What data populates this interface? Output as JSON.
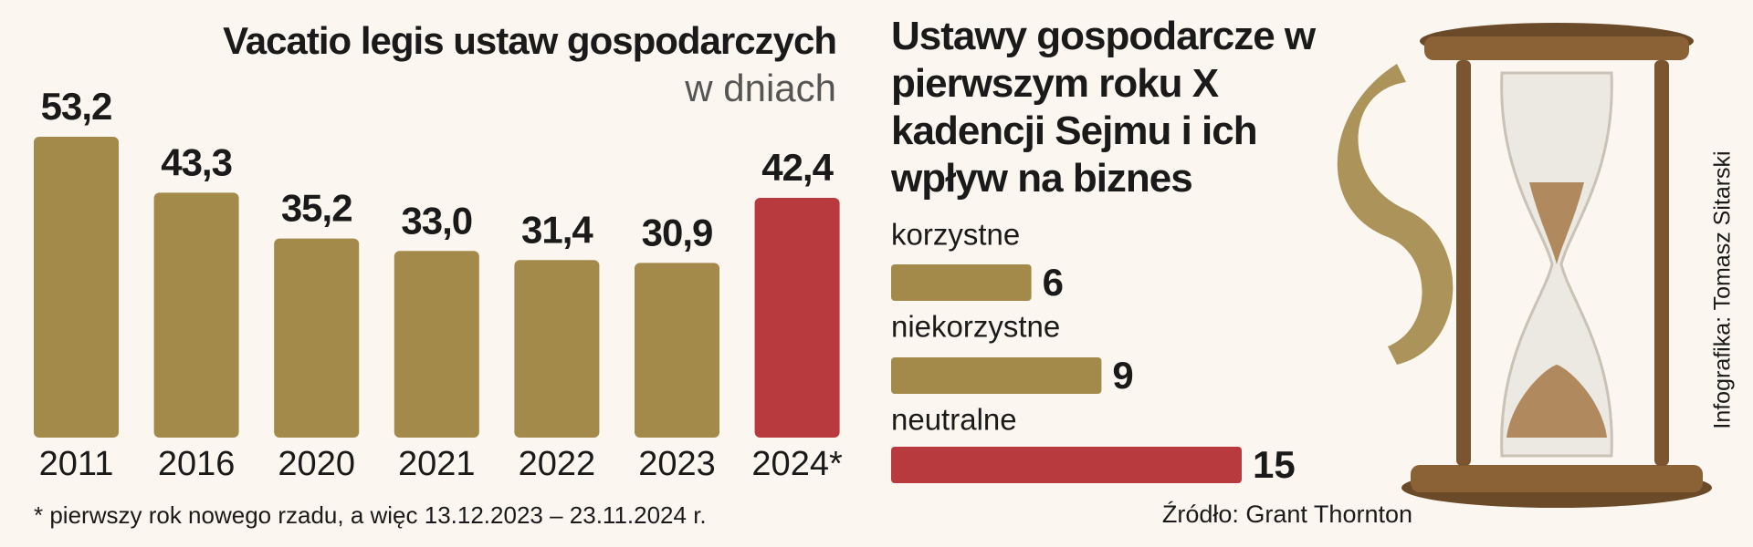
{
  "chart_data": [
    {
      "type": "bar",
      "title": "Vacatio legis ustaw gospodarczych",
      "subtitle": "w dniach",
      "categories": [
        "2011",
        "2016",
        "2020",
        "2021",
        "2022",
        "2023",
        "2024*"
      ],
      "values": [
        53.2,
        43.3,
        35.2,
        33.0,
        31.4,
        30.9,
        42.4
      ],
      "value_labels": [
        "53,2",
        "43,3",
        "35,2",
        "33,0",
        "31,4",
        "30,9",
        "42,4"
      ],
      "colors": [
        "#a3894a",
        "#a3894a",
        "#a3894a",
        "#a3894a",
        "#a3894a",
        "#a3894a",
        "#b93a3e"
      ],
      "footnote": "* pierwszy rok nowego rzadu, a więc 13.12.2023 – 23.11.2024 r."
    },
    {
      "type": "barh",
      "title": "Ustawy gospodarcze w pierwszym roku X kadencji Sejmu i ich wpływ na biznes",
      "categories": [
        "korzystne",
        "niekorzystne",
        "neutralne"
      ],
      "values": [
        6,
        9,
        15
      ],
      "colors": [
        "#a3894a",
        "#a3894a",
        "#b93a3e"
      ],
      "source": "Źródło: Grant Thornton"
    }
  ],
  "credit": "Infografika: Tomasz Sitarski"
}
